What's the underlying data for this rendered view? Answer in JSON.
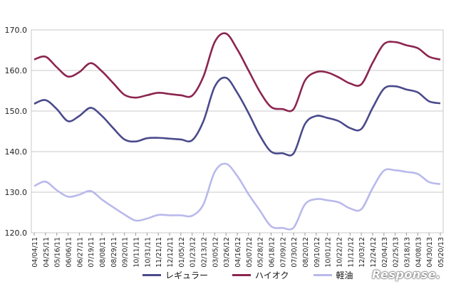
{
  "chart_data": {
    "type": "line",
    "title": "",
    "xlabel": "",
    "ylabel": "",
    "ylim": [
      120,
      170
    ],
    "yticks": [
      "120.0",
      "130.0",
      "140.0",
      "150.0",
      "160.0",
      "170.0"
    ],
    "grid": true,
    "legend_position": "bottom",
    "categories": [
      "04/04/11",
      "04/25/11",
      "05/16/11",
      "06/06/11",
      "06/27/11",
      "07/19/11",
      "08/08/11",
      "08/29/11",
      "09/20/11",
      "10/11/11",
      "10/31/11",
      "11/21/11",
      "12/12/11",
      "01/05/12",
      "01/23/12",
      "02/13/12",
      "03/05/12",
      "03/26/12",
      "04/16/12",
      "05/07/12",
      "05/28/12",
      "06/18/12",
      "07/09/12",
      "07/30/12",
      "08/20/12",
      "09/10/12",
      "10/01/12",
      "10/22/12",
      "11/12/12",
      "12/03/12",
      "12/24/12",
      "02/04/13",
      "02/25/13",
      "03/18/13",
      "04/08/13",
      "04/30/13",
      "05/20/13"
    ],
    "series": [
      {
        "name": "レギュラー",
        "color": "#4a4a8c",
        "values": [
          151.8,
          152.7,
          150.5,
          147.5,
          148.8,
          150.8,
          148.8,
          145.8,
          143.0,
          142.5,
          143.3,
          143.4,
          143.2,
          143.0,
          142.8,
          147.5,
          156.0,
          158.2,
          154.5,
          149.5,
          144.0,
          140.0,
          139.6,
          139.6,
          146.8,
          148.8,
          148.3,
          147.5,
          145.8,
          145.6,
          150.8,
          155.5,
          156.1,
          155.3,
          154.6,
          152.4,
          151.9
        ]
      },
      {
        "name": "ハイオク",
        "color": "#8c2550",
        "values": [
          162.7,
          163.4,
          160.8,
          158.5,
          159.6,
          161.8,
          159.8,
          156.9,
          154.0,
          153.3,
          153.9,
          154.5,
          154.2,
          153.9,
          153.8,
          158.5,
          167.0,
          169.1,
          165.2,
          160.0,
          154.8,
          151.0,
          150.5,
          150.5,
          157.5,
          159.6,
          159.5,
          158.3,
          156.8,
          156.6,
          161.9,
          166.5,
          167.0,
          166.2,
          165.5,
          163.4,
          162.7
        ]
      },
      {
        "name": "軽油",
        "color": "#b9b9ec",
        "values": [
          131.5,
          132.6,
          130.5,
          128.9,
          129.4,
          130.3,
          128.2,
          126.3,
          124.5,
          123.0,
          123.5,
          124.4,
          124.3,
          124.3,
          124.2,
          127.0,
          135.0,
          137.0,
          134.0,
          129.5,
          125.5,
          121.6,
          121.2,
          121.3,
          127.0,
          128.3,
          128.0,
          127.5,
          126.0,
          125.8,
          131.0,
          135.3,
          135.4,
          135.0,
          134.5,
          132.5,
          132.0
        ]
      }
    ]
  },
  "watermark": "Response."
}
